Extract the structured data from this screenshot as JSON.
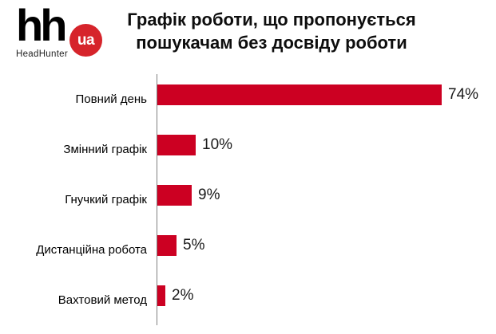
{
  "logo": {
    "hh": "hh",
    "ua": "ua",
    "brand": "HeadHunter",
    "circle_color": "#d6242b"
  },
  "title": {
    "line1": "Графік роботи, що пропонується",
    "line2": "пошукачам без досвіду роботи"
  },
  "chart_data": {
    "type": "bar",
    "orientation": "horizontal",
    "title": "Графік роботи, що пропонується пошукачам без досвіду роботи",
    "categories": [
      "Повний день",
      "Змінний графік",
      "Гнучкий графік",
      "Дистанційна робота",
      "Вахтовий метод"
    ],
    "values": [
      74,
      10,
      9,
      5,
      2
    ],
    "value_labels": [
      "74%",
      "10%",
      "9%",
      "5%",
      "2%"
    ],
    "unit": "%",
    "xlabel": "",
    "ylabel": "",
    "xlim": [
      0,
      74
    ],
    "grid": false,
    "legend": false,
    "bar_color": "#cc0022",
    "axis_color": "#7f7f7f"
  }
}
